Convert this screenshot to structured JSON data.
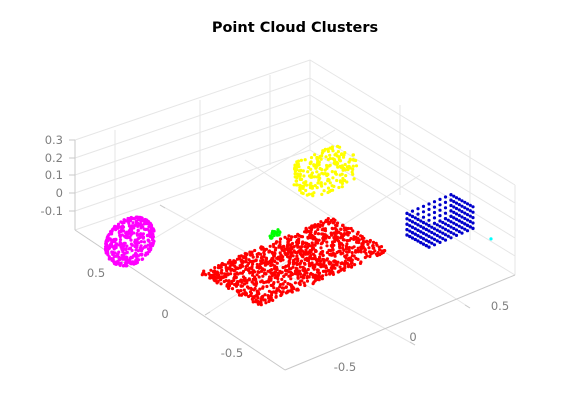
{
  "chart_data": {
    "type": "scatter",
    "subtype": "3d-point-cloud",
    "title": "Point Cloud Clusters",
    "xlabel": "",
    "ylabel": "",
    "zlabel": "",
    "xlim": [
      -0.7,
      0.7
    ],
    "ylim": [
      -0.7,
      0.7
    ],
    "zlim": [
      -0.15,
      0.35
    ],
    "x_ticks": [
      "-0.5",
      "0",
      "0.5"
    ],
    "y_ticks": [
      "-0.5",
      "0",
      "0.5"
    ],
    "z_ticks": [
      "-0.1",
      "0",
      "0.1",
      "0.2",
      "0.3"
    ],
    "grid": true,
    "legend": "none",
    "series": [
      {
        "shape": "sphere",
        "color": "#ff00ff",
        "center": [
          -0.55,
          0.55,
          0.15
        ],
        "radius": 0.11
      },
      {
        "shape": "box-surface",
        "color": "#ffff00",
        "center": [
          0.45,
          0.6,
          0.05
        ],
        "size": [
          0.22,
          0.2,
          0.14
        ]
      },
      {
        "shape": "plane",
        "color": "#ff0000",
        "center": [
          -0.05,
          -0.1,
          0.0
        ],
        "size": [
          0.65,
          0.6
        ]
      },
      {
        "shape": "small-cluster",
        "color": "#00ff00",
        "center": [
          0.0,
          0.2,
          0.04
        ]
      },
      {
        "shape": "box-open",
        "color": "#0000cc",
        "center": [
          0.55,
          -0.35,
          0.02
        ],
        "size": [
          0.22,
          0.22,
          0.12
        ]
      },
      {
        "shape": "single-point",
        "color": "#00ffff",
        "center": [
          0.62,
          -0.72,
          0.0
        ]
      }
    ]
  }
}
